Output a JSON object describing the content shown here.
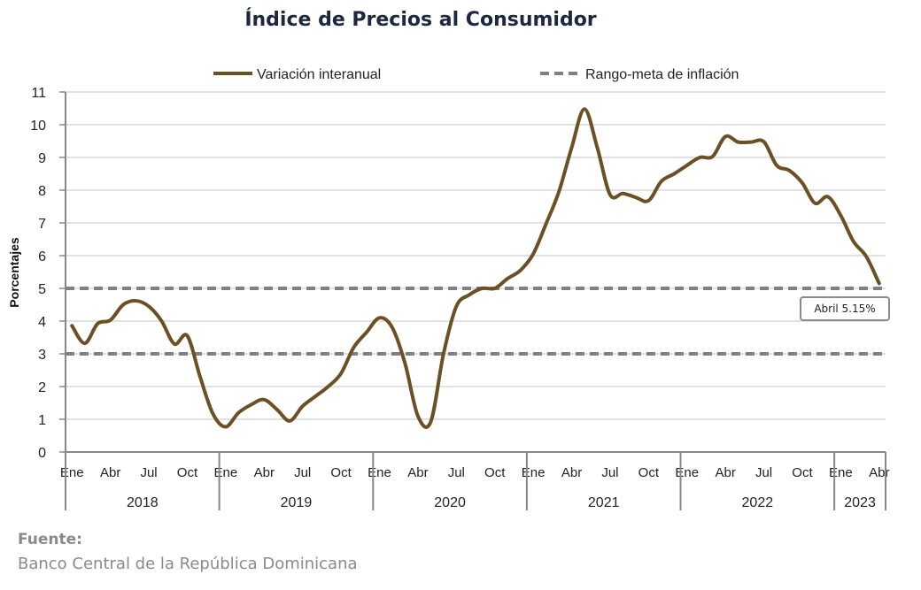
{
  "chart_data": {
    "type": "line",
    "title": "Índice de Precios al Consumidor",
    "ylabel": "Porcentajes",
    "ylim": [
      0,
      11
    ],
    "yticks": [
      0,
      1,
      2,
      3,
      4,
      5,
      6,
      7,
      8,
      9,
      10,
      11
    ],
    "grid": true,
    "legend_placement": "top",
    "years": [
      "2018",
      "2019",
      "2020",
      "2021",
      "2022",
      "2023"
    ],
    "month_labels": [
      "Ene",
      "Abr",
      "Jul",
      "Oct"
    ],
    "x_start": "2018-01",
    "x_end": "2023-04",
    "series": [
      {
        "name": "Variación interanual",
        "color": "#6b5024",
        "style": "solid",
        "values": [
          3.86,
          3.32,
          3.92,
          4.03,
          4.5,
          4.62,
          4.45,
          4.0,
          3.3,
          3.55,
          2.3,
          1.17,
          0.77,
          1.2,
          1.45,
          1.6,
          1.3,
          0.95,
          1.4,
          1.7,
          2.0,
          2.4,
          3.2,
          3.66,
          4.1,
          3.8,
          2.7,
          1.1,
          0.92,
          3.0,
          4.45,
          4.8,
          5.0,
          5.0,
          5.3,
          5.55,
          6.05,
          6.97,
          7.95,
          9.3,
          10.48,
          9.3,
          7.86,
          7.9,
          7.78,
          7.68,
          8.27,
          8.5,
          8.76,
          9.0,
          9.03,
          9.64,
          9.47,
          9.47,
          9.48,
          8.76,
          8.6,
          8.22,
          7.6,
          7.8,
          7.23,
          6.43,
          5.97,
          5.15
        ]
      },
      {
        "name": "Rango-meta de inflación",
        "color": "#808080",
        "style": "dashed",
        "values_upper": 5,
        "values_lower": 3
      }
    ],
    "annotation": "Abril 5.15%"
  },
  "source": {
    "heading": "Fuente:",
    "text": "Banco Central de la República Dominicana"
  }
}
